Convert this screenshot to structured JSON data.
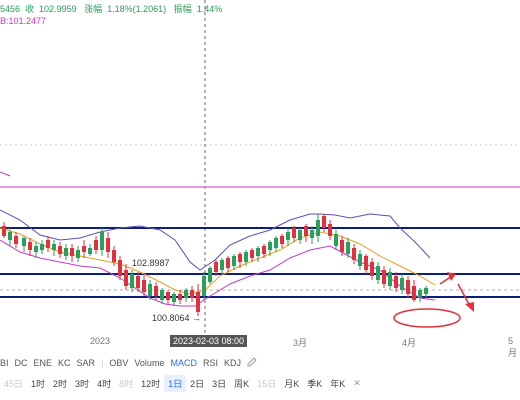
{
  "header": {
    "ohlc_prefix": "5456",
    "close_label": "收",
    "close_value": "102.9959",
    "change_label": "涨幅",
    "change_value": "1.18%(1.2061)",
    "amplitude_label": "振幅",
    "amplitude_value": "1.44%",
    "ma_readout": "B:101.2477"
  },
  "chart": {
    "price_label_high": "102.8987",
    "price_label_low": "100.8064",
    "crosshair_date": "2023-02-03 08:00",
    "x_labels": [
      "2023",
      "3月",
      "4月",
      "5月"
    ],
    "colors": {
      "up": "#2e9e5b",
      "down": "#e0323a",
      "bb_band": "#5b4fb7",
      "bb_mid": "#e6a321",
      "bb_lower": "#c43bc8",
      "pink_line": "#e062c8",
      "support_line": "#0a1e7a",
      "annotation": "#e0323a"
    }
  },
  "indicators": {
    "items": [
      "BI",
      "DC",
      "ENE",
      "KC",
      "SAR",
      "OBV",
      "Volume",
      "MACD",
      "RSI",
      "KDJ"
    ],
    "active": "MACD",
    "edit_icon": "edit-icon"
  },
  "intervals": {
    "items": [
      {
        "label": "45日",
        "dim": true
      },
      {
        "label": "1时",
        "dim": false
      },
      {
        "label": "2时",
        "dim": false
      },
      {
        "label": "3时",
        "dim": false
      },
      {
        "label": "4时",
        "dim": false
      },
      {
        "label": "8时",
        "dim": true
      },
      {
        "label": "12时",
        "dim": false
      },
      {
        "label": "1日",
        "dim": false,
        "selected": true
      },
      {
        "label": "2日",
        "dim": false
      },
      {
        "label": "3日",
        "dim": false
      },
      {
        "label": "周K",
        "dim": false
      },
      {
        "label": "15日",
        "dim": true
      },
      {
        "label": "月K",
        "dim": false
      },
      {
        "label": "季K",
        "dim": false
      },
      {
        "label": "年K",
        "dim": false
      }
    ],
    "close_symbol": "✕"
  }
}
